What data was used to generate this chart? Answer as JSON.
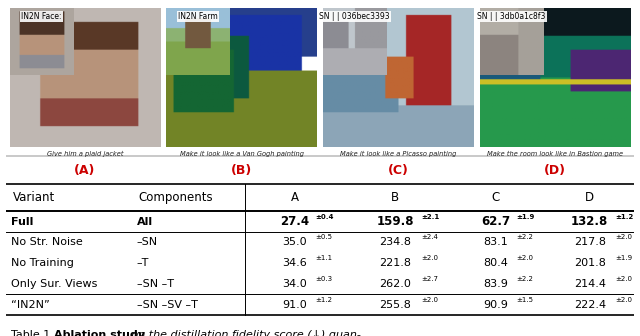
{
  "images": [
    {
      "label": "IN2N Face:",
      "caption": "Give him a plaid jacket",
      "letter": "(A)"
    },
    {
      "label": "IN2N Farm",
      "caption": "Make it look like a Van Gogh painting",
      "letter": "(B)"
    },
    {
      "label": "SN | | 036bec3393",
      "caption": "Make it look like a Picasso painting",
      "letter": "(C)"
    },
    {
      "label": "SN | | 3db0a1c8f3",
      "caption": "Make the room look like in Bastion game",
      "letter": "(D)"
    }
  ],
  "table": {
    "col_headers": [
      "Variant",
      "Components",
      "A",
      "B",
      "C",
      "D"
    ],
    "rows": [
      {
        "variant": "Full",
        "components": "All",
        "A": "27.4",
        "A_err": "±0.4",
        "B": "159.8",
        "B_err": "±2.1",
        "C": "62.7",
        "C_err": "±1.9",
        "D": "132.8",
        "D_err": "±1.2",
        "bold": true,
        "separator_above": true
      },
      {
        "variant": "No Str. Noise",
        "components": "–SN",
        "A": "35.0",
        "A_err": "±0.5",
        "B": "234.8",
        "B_err": "±2.4",
        "C": "83.1",
        "C_err": "±2.2",
        "D": "217.8",
        "D_err": "±2.0",
        "bold": false,
        "separator_above": true
      },
      {
        "variant": "No Training",
        "components": "–T",
        "A": "34.6",
        "A_err": "±1.1",
        "B": "221.8",
        "B_err": "±2.0",
        "C": "80.4",
        "C_err": "±2.0",
        "D": "201.8",
        "D_err": "±1.9",
        "bold": false,
        "separator_above": false
      },
      {
        "variant": "Only Sur. Views",
        "components": "–SN –T",
        "A": "34.0",
        "A_err": "±0.3",
        "B": "262.0",
        "B_err": "±2.7",
        "C": "83.9",
        "C_err": "±2.2",
        "D": "214.4",
        "D_err": "±2.0",
        "bold": false,
        "separator_above": false
      },
      {
        "variant": "“IN2N”",
        "components": "–SN –SV –T",
        "A": "91.0",
        "A_err": "±1.2",
        "B": "255.8",
        "B_err": "±2.0",
        "C": "90.9",
        "C_err": "±1.5",
        "D": "222.4",
        "D_err": "±2.0",
        "bold": false,
        "separator_above": true
      }
    ]
  },
  "caption_prefix": "Table 1. ",
  "caption_bold": "Ablation study",
  "caption_italic": " on the distillation fidelity score (↓) quan-",
  "letter_color": "#cc0000",
  "bg_color": "#ffffff"
}
